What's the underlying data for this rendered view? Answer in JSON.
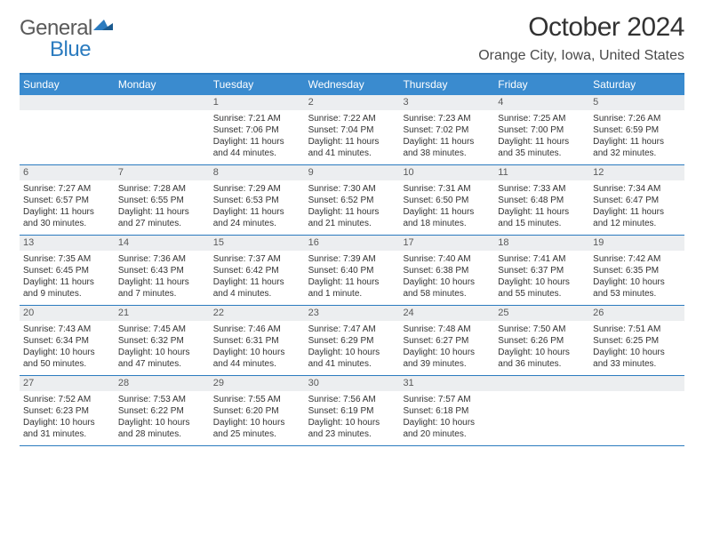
{
  "brand": {
    "word1": "General",
    "word2": "Blue"
  },
  "title": "October 2024",
  "location": "Orange City, Iowa, United States",
  "colors": {
    "header_bg": "#3a8bcf",
    "header_text": "#ffffff",
    "border": "#2b7bbf",
    "daynum_bg": "#eceef0",
    "daynum_text": "#5a5a5a",
    "body_text": "#333333",
    "brand_gray": "#5a5a5a",
    "brand_blue": "#2b7bbf"
  },
  "day_labels": [
    "Sunday",
    "Monday",
    "Tuesday",
    "Wednesday",
    "Thursday",
    "Friday",
    "Saturday"
  ],
  "weeks": [
    [
      {
        "n": "",
        "empty": true
      },
      {
        "n": "",
        "empty": true
      },
      {
        "n": "1",
        "sunrise": "Sunrise: 7:21 AM",
        "sunset": "Sunset: 7:06 PM",
        "daylight": "Daylight: 11 hours and 44 minutes."
      },
      {
        "n": "2",
        "sunrise": "Sunrise: 7:22 AM",
        "sunset": "Sunset: 7:04 PM",
        "daylight": "Daylight: 11 hours and 41 minutes."
      },
      {
        "n": "3",
        "sunrise": "Sunrise: 7:23 AM",
        "sunset": "Sunset: 7:02 PM",
        "daylight": "Daylight: 11 hours and 38 minutes."
      },
      {
        "n": "4",
        "sunrise": "Sunrise: 7:25 AM",
        "sunset": "Sunset: 7:00 PM",
        "daylight": "Daylight: 11 hours and 35 minutes."
      },
      {
        "n": "5",
        "sunrise": "Sunrise: 7:26 AM",
        "sunset": "Sunset: 6:59 PM",
        "daylight": "Daylight: 11 hours and 32 minutes."
      }
    ],
    [
      {
        "n": "6",
        "sunrise": "Sunrise: 7:27 AM",
        "sunset": "Sunset: 6:57 PM",
        "daylight": "Daylight: 11 hours and 30 minutes."
      },
      {
        "n": "7",
        "sunrise": "Sunrise: 7:28 AM",
        "sunset": "Sunset: 6:55 PM",
        "daylight": "Daylight: 11 hours and 27 minutes."
      },
      {
        "n": "8",
        "sunrise": "Sunrise: 7:29 AM",
        "sunset": "Sunset: 6:53 PM",
        "daylight": "Daylight: 11 hours and 24 minutes."
      },
      {
        "n": "9",
        "sunrise": "Sunrise: 7:30 AM",
        "sunset": "Sunset: 6:52 PM",
        "daylight": "Daylight: 11 hours and 21 minutes."
      },
      {
        "n": "10",
        "sunrise": "Sunrise: 7:31 AM",
        "sunset": "Sunset: 6:50 PM",
        "daylight": "Daylight: 11 hours and 18 minutes."
      },
      {
        "n": "11",
        "sunrise": "Sunrise: 7:33 AM",
        "sunset": "Sunset: 6:48 PM",
        "daylight": "Daylight: 11 hours and 15 minutes."
      },
      {
        "n": "12",
        "sunrise": "Sunrise: 7:34 AM",
        "sunset": "Sunset: 6:47 PM",
        "daylight": "Daylight: 11 hours and 12 minutes."
      }
    ],
    [
      {
        "n": "13",
        "sunrise": "Sunrise: 7:35 AM",
        "sunset": "Sunset: 6:45 PM",
        "daylight": "Daylight: 11 hours and 9 minutes."
      },
      {
        "n": "14",
        "sunrise": "Sunrise: 7:36 AM",
        "sunset": "Sunset: 6:43 PM",
        "daylight": "Daylight: 11 hours and 7 minutes."
      },
      {
        "n": "15",
        "sunrise": "Sunrise: 7:37 AM",
        "sunset": "Sunset: 6:42 PM",
        "daylight": "Daylight: 11 hours and 4 minutes."
      },
      {
        "n": "16",
        "sunrise": "Sunrise: 7:39 AM",
        "sunset": "Sunset: 6:40 PM",
        "daylight": "Daylight: 11 hours and 1 minute."
      },
      {
        "n": "17",
        "sunrise": "Sunrise: 7:40 AM",
        "sunset": "Sunset: 6:38 PM",
        "daylight": "Daylight: 10 hours and 58 minutes."
      },
      {
        "n": "18",
        "sunrise": "Sunrise: 7:41 AM",
        "sunset": "Sunset: 6:37 PM",
        "daylight": "Daylight: 10 hours and 55 minutes."
      },
      {
        "n": "19",
        "sunrise": "Sunrise: 7:42 AM",
        "sunset": "Sunset: 6:35 PM",
        "daylight": "Daylight: 10 hours and 53 minutes."
      }
    ],
    [
      {
        "n": "20",
        "sunrise": "Sunrise: 7:43 AM",
        "sunset": "Sunset: 6:34 PM",
        "daylight": "Daylight: 10 hours and 50 minutes."
      },
      {
        "n": "21",
        "sunrise": "Sunrise: 7:45 AM",
        "sunset": "Sunset: 6:32 PM",
        "daylight": "Daylight: 10 hours and 47 minutes."
      },
      {
        "n": "22",
        "sunrise": "Sunrise: 7:46 AM",
        "sunset": "Sunset: 6:31 PM",
        "daylight": "Daylight: 10 hours and 44 minutes."
      },
      {
        "n": "23",
        "sunrise": "Sunrise: 7:47 AM",
        "sunset": "Sunset: 6:29 PM",
        "daylight": "Daylight: 10 hours and 41 minutes."
      },
      {
        "n": "24",
        "sunrise": "Sunrise: 7:48 AM",
        "sunset": "Sunset: 6:27 PM",
        "daylight": "Daylight: 10 hours and 39 minutes."
      },
      {
        "n": "25",
        "sunrise": "Sunrise: 7:50 AM",
        "sunset": "Sunset: 6:26 PM",
        "daylight": "Daylight: 10 hours and 36 minutes."
      },
      {
        "n": "26",
        "sunrise": "Sunrise: 7:51 AM",
        "sunset": "Sunset: 6:25 PM",
        "daylight": "Daylight: 10 hours and 33 minutes."
      }
    ],
    [
      {
        "n": "27",
        "sunrise": "Sunrise: 7:52 AM",
        "sunset": "Sunset: 6:23 PM",
        "daylight": "Daylight: 10 hours and 31 minutes."
      },
      {
        "n": "28",
        "sunrise": "Sunrise: 7:53 AM",
        "sunset": "Sunset: 6:22 PM",
        "daylight": "Daylight: 10 hours and 28 minutes."
      },
      {
        "n": "29",
        "sunrise": "Sunrise: 7:55 AM",
        "sunset": "Sunset: 6:20 PM",
        "daylight": "Daylight: 10 hours and 25 minutes."
      },
      {
        "n": "30",
        "sunrise": "Sunrise: 7:56 AM",
        "sunset": "Sunset: 6:19 PM",
        "daylight": "Daylight: 10 hours and 23 minutes."
      },
      {
        "n": "31",
        "sunrise": "Sunrise: 7:57 AM",
        "sunset": "Sunset: 6:18 PM",
        "daylight": "Daylight: 10 hours and 20 minutes."
      },
      {
        "n": "",
        "empty": true
      },
      {
        "n": "",
        "empty": true
      }
    ]
  ]
}
